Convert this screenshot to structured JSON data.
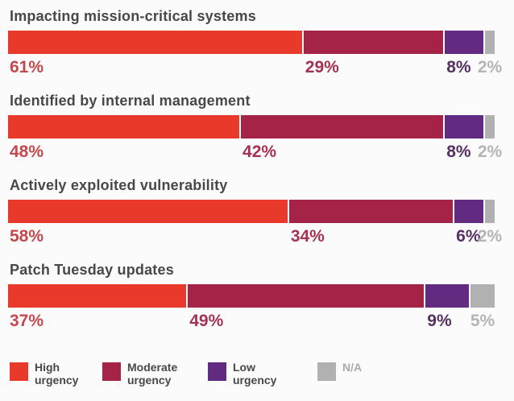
{
  "chart_data": {
    "type": "bar",
    "orientation": "horizontal-stacked",
    "unit": "%",
    "xlim": [
      0,
      100
    ],
    "grid": false,
    "legend_position": "bottom",
    "categories": [
      "Impacting mission-critical systems",
      "Identified by internal management",
      "Actively exploited vulnerability",
      "Patch Tuesday updates"
    ],
    "series": [
      {
        "name": "High urgency",
        "color": "#e8392b",
        "label_color": "#c5484c",
        "values": [
          61,
          48,
          58,
          37
        ]
      },
      {
        "name": "Moderate urgency",
        "color": "#a42347",
        "label_color": "#a43253",
        "values": [
          29,
          42,
          34,
          49
        ]
      },
      {
        "name": "Low urgency",
        "color": "#632a82",
        "label_color": "#563062",
        "values": [
          8,
          8,
          6,
          9
        ]
      },
      {
        "name": "N/A",
        "color": "#b1b1b1",
        "label_color": "#b5b5b7",
        "values": [
          2,
          2,
          2,
          5
        ]
      }
    ],
    "value_labels": {
      "row_0": [
        "61%",
        "29%",
        "8%",
        "2%"
      ],
      "row_1": [
        "48%",
        "42%",
        "8%",
        "2%"
      ],
      "row_2": [
        "58%",
        "34%",
        "6%",
        "2%"
      ],
      "row_3": [
        "37%",
        "49%",
        "9%",
        "5%"
      ]
    },
    "legend": [
      {
        "label": "High urgency",
        "text_color": "#48484a"
      },
      {
        "label": "Moderate urgency",
        "text_color": "#48484a"
      },
      {
        "label": "Low urgency",
        "text_color": "#48484a"
      },
      {
        "label": "N/A",
        "text_color": "#aaaaac"
      }
    ],
    "title_text_color": "#48484a"
  }
}
